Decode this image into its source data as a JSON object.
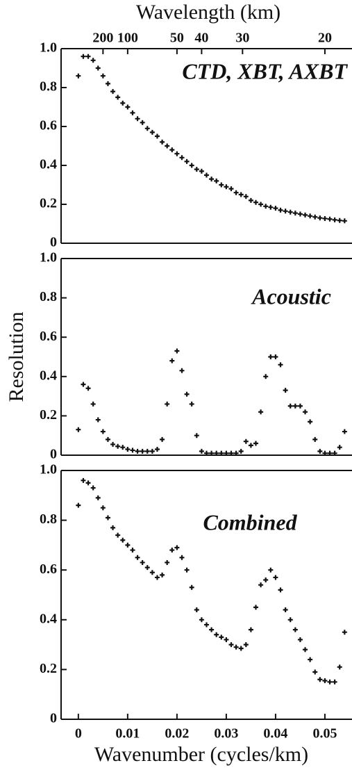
{
  "chart_data": [
    {
      "type": "scatter",
      "title": "CTD, XBT, AXBT",
      "x2label": "Wavelength (km)",
      "x": [
        0,
        0.001,
        0.002,
        0.003,
        0.004,
        0.005,
        0.006,
        0.007,
        0.008,
        0.009,
        0.01,
        0.011,
        0.012,
        0.013,
        0.014,
        0.015,
        0.016,
        0.017,
        0.018,
        0.019,
        0.02,
        0.021,
        0.022,
        0.023,
        0.024,
        0.025,
        0.026,
        0.027,
        0.028,
        0.029,
        0.03,
        0.031,
        0.032,
        0.033,
        0.034,
        0.035,
        0.036,
        0.037,
        0.038,
        0.039,
        0.04,
        0.041,
        0.042,
        0.043,
        0.044,
        0.045,
        0.046,
        0.047,
        0.048,
        0.049,
        0.05,
        0.051,
        0.052,
        0.053,
        0.054
      ],
      "values": [
        0.86,
        0.96,
        0.96,
        0.94,
        0.9,
        0.86,
        0.82,
        0.78,
        0.75,
        0.72,
        0.7,
        0.67,
        0.64,
        0.62,
        0.59,
        0.57,
        0.55,
        0.52,
        0.5,
        0.48,
        0.46,
        0.44,
        0.42,
        0.4,
        0.38,
        0.37,
        0.35,
        0.33,
        0.32,
        0.3,
        0.29,
        0.28,
        0.26,
        0.25,
        0.24,
        0.22,
        0.21,
        0.2,
        0.19,
        0.185,
        0.18,
        0.17,
        0.165,
        0.16,
        0.155,
        0.15,
        0.145,
        0.14,
        0.135,
        0.13,
        0.127,
        0.124,
        0.12,
        0.117,
        0.115
      ],
      "color": "#111111",
      "xlim": [
        -0.0035,
        0.0555
      ],
      "ylim": [
        0,
        1
      ],
      "yticks": [
        0,
        0.2,
        0.4,
        0.6,
        0.8,
        {
          "value": 1,
          "label": "1.0"
        }
      ],
      "x2ticks": [
        {
          "value": 0.005,
          "label": "200"
        },
        {
          "value": 0.01,
          "label": "100"
        },
        {
          "value": 0.02,
          "label": "50"
        },
        {
          "value": 0.025,
          "label": "40"
        },
        {
          "value": 0.0333,
          "label": "30"
        },
        {
          "value": 0.05,
          "label": "20"
        }
      ]
    },
    {
      "type": "scatter",
      "title": "Acoustic",
      "ylabel": "Resolution",
      "x": [
        0,
        0.001,
        0.002,
        0.003,
        0.004,
        0.005,
        0.006,
        0.007,
        0.008,
        0.009,
        0.01,
        0.011,
        0.012,
        0.013,
        0.014,
        0.015,
        0.016,
        0.017,
        0.018,
        0.019,
        0.02,
        0.021,
        0.022,
        0.023,
        0.024,
        0.025,
        0.026,
        0.027,
        0.028,
        0.029,
        0.03,
        0.031,
        0.032,
        0.033,
        0.034,
        0.035,
        0.036,
        0.037,
        0.038,
        0.039,
        0.04,
        0.041,
        0.042,
        0.043,
        0.044,
        0.045,
        0.046,
        0.047,
        0.048,
        0.049,
        0.05,
        0.051,
        0.052,
        0.053,
        0.054
      ],
      "values": [
        0.13,
        0.36,
        0.34,
        0.26,
        0.18,
        0.12,
        0.08,
        0.055,
        0.045,
        0.04,
        0.03,
        0.025,
        0.02,
        0.02,
        0.02,
        0.02,
        0.03,
        0.08,
        0.26,
        0.48,
        0.53,
        0.43,
        0.31,
        0.26,
        0.1,
        0.02,
        0.01,
        0.01,
        0.01,
        0.01,
        0.01,
        0.01,
        0.01,
        0.02,
        0.07,
        0.05,
        0.06,
        0.22,
        0.4,
        0.5,
        0.5,
        0.46,
        0.33,
        0.25,
        0.25,
        0.25,
        0.22,
        0.17,
        0.08,
        0.02,
        0.01,
        0.01,
        0.01,
        0.04,
        0.12
      ],
      "color": "#111111",
      "xlim": [
        -0.0035,
        0.0555
      ],
      "ylim": [
        0,
        1
      ],
      "yticks": [
        0,
        0.2,
        0.4,
        0.6,
        0.8,
        {
          "value": 1,
          "label": "1.0"
        }
      ]
    },
    {
      "type": "scatter",
      "title": "Combined",
      "xlabel": "Wavenumber (cycles/km)",
      "x": [
        0,
        0.001,
        0.002,
        0.003,
        0.004,
        0.005,
        0.006,
        0.007,
        0.008,
        0.009,
        0.01,
        0.011,
        0.012,
        0.013,
        0.014,
        0.015,
        0.016,
        0.017,
        0.018,
        0.019,
        0.02,
        0.021,
        0.022,
        0.023,
        0.024,
        0.025,
        0.026,
        0.027,
        0.028,
        0.029,
        0.03,
        0.031,
        0.032,
        0.033,
        0.034,
        0.035,
        0.036,
        0.037,
        0.038,
        0.039,
        0.04,
        0.041,
        0.042,
        0.043,
        0.044,
        0.045,
        0.046,
        0.047,
        0.048,
        0.049,
        0.05,
        0.051,
        0.052,
        0.053,
        0.054
      ],
      "values": [
        0.86,
        0.96,
        0.95,
        0.93,
        0.89,
        0.85,
        0.81,
        0.77,
        0.74,
        0.72,
        0.7,
        0.68,
        0.65,
        0.63,
        0.61,
        0.59,
        0.57,
        0.58,
        0.63,
        0.68,
        0.69,
        0.65,
        0.6,
        0.53,
        0.44,
        0.4,
        0.38,
        0.36,
        0.34,
        0.33,
        0.32,
        0.3,
        0.29,
        0.285,
        0.3,
        0.36,
        0.45,
        0.54,
        0.56,
        0.6,
        0.57,
        0.52,
        0.44,
        0.4,
        0.36,
        0.32,
        0.28,
        0.24,
        0.19,
        0.16,
        0.155,
        0.15,
        0.15,
        0.21,
        0.35
      ],
      "color": "#111111",
      "xlim": [
        -0.0035,
        0.0555
      ],
      "ylim": [
        0,
        1
      ],
      "yticks": [
        0,
        0.2,
        0.4,
        0.6,
        0.8,
        {
          "value": 1,
          "label": "1.0"
        }
      ],
      "xticks": [
        0,
        0.01,
        0.02,
        0.03,
        0.04,
        0.05
      ]
    }
  ]
}
